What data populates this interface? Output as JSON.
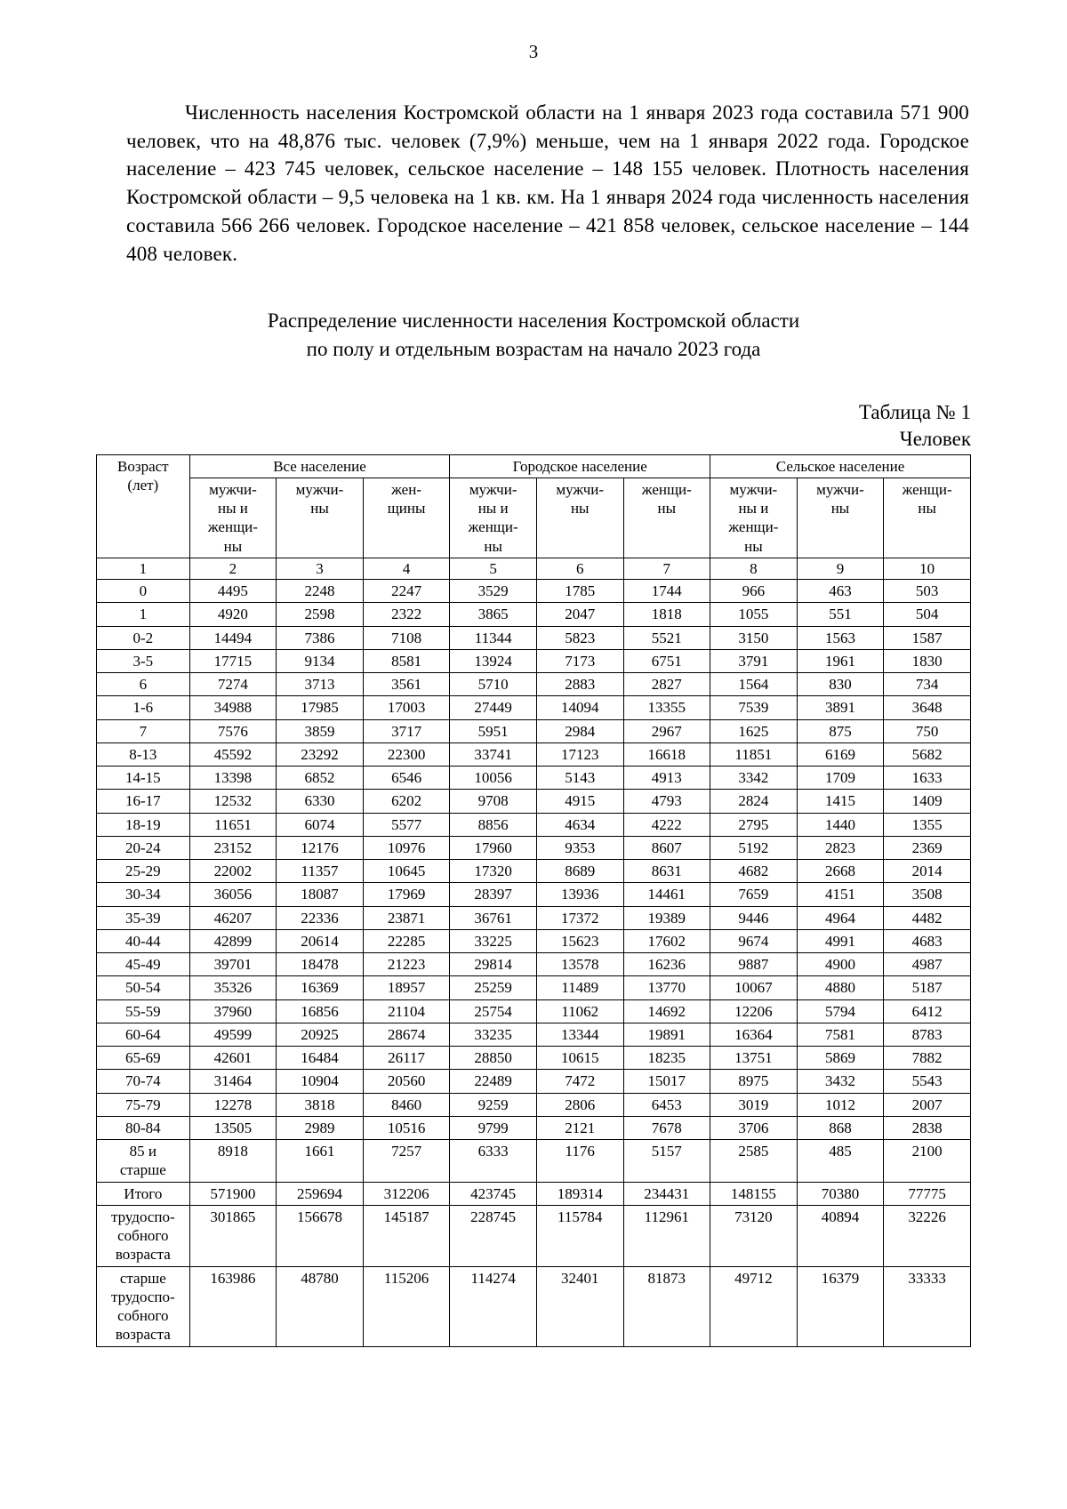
{
  "page_number": "3",
  "paragraph": "Численность населения Костромской области на 1 января 2023 года составила 571 900 человек, что на 48,876 тыс. человек (7,9%) меньше, чем на 1 января 2022 года. Городское население – 423 745 человек, сельское население – 148 155 человек. Плотность населения Костромской области – 9,5 человека на 1 кв. км. На 1 января 2024 года численность населения составила 566 266 человек. Городское население – 421 858 человек, сельское население – 144 408 человек.",
  "heading": {
    "line1": "Распределение численности населения Костромской области",
    "line2": "по полу и отдельным возрастам на начало 2023 года"
  },
  "table_label": "Таблица № 1",
  "table_units": "Человек",
  "table": {
    "age_header": "Возраст\n(лет)",
    "col_groups": [
      "Все население",
      "Городское население",
      "Сельское население"
    ],
    "sub_headers": [
      "мужчи-\nны и\nженщи-\nны",
      "мужчи-\nны",
      "жен-\nщины",
      "мужчи-\nны и\nженщи-\nны",
      "мужчи-\nны",
      "женщи-\nны",
      "мужчи-\nны и\nженщи-\nны",
      "мужчи-\nны",
      "женщи-\nны"
    ],
    "col_numbers": [
      "1",
      "2",
      "3",
      "4",
      "5",
      "6",
      "7",
      "8",
      "9",
      "10"
    ],
    "rows": [
      [
        "0",
        "4495",
        "2248",
        "2247",
        "3529",
        "1785",
        "1744",
        "966",
        "463",
        "503"
      ],
      [
        "1",
        "4920",
        "2598",
        "2322",
        "3865",
        "2047",
        "1818",
        "1055",
        "551",
        "504"
      ],
      [
        "0-2",
        "14494",
        "7386",
        "7108",
        "11344",
        "5823",
        "5521",
        "3150",
        "1563",
        "1587"
      ],
      [
        "3-5",
        "17715",
        "9134",
        "8581",
        "13924",
        "7173",
        "6751",
        "3791",
        "1961",
        "1830"
      ],
      [
        "6",
        "7274",
        "3713",
        "3561",
        "5710",
        "2883",
        "2827",
        "1564",
        "830",
        "734"
      ],
      [
        "1-6",
        "34988",
        "17985",
        "17003",
        "27449",
        "14094",
        "13355",
        "7539",
        "3891",
        "3648"
      ],
      [
        "7",
        "7576",
        "3859",
        "3717",
        "5951",
        "2984",
        "2967",
        "1625",
        "875",
        "750"
      ],
      [
        "8-13",
        "45592",
        "23292",
        "22300",
        "33741",
        "17123",
        "16618",
        "11851",
        "6169",
        "5682"
      ],
      [
        "14-15",
        "13398",
        "6852",
        "6546",
        "10056",
        "5143",
        "4913",
        "3342",
        "1709",
        "1633"
      ],
      [
        "16-17",
        "12532",
        "6330",
        "6202",
        "9708",
        "4915",
        "4793",
        "2824",
        "1415",
        "1409"
      ],
      [
        "18-19",
        "11651",
        "6074",
        "5577",
        "8856",
        "4634",
        "4222",
        "2795",
        "1440",
        "1355"
      ],
      [
        "20-24",
        "23152",
        "12176",
        "10976",
        "17960",
        "9353",
        "8607",
        "5192",
        "2823",
        "2369"
      ],
      [
        "25-29",
        "22002",
        "11357",
        "10645",
        "17320",
        "8689",
        "8631",
        "4682",
        "2668",
        "2014"
      ],
      [
        "30-34",
        "36056",
        "18087",
        "17969",
        "28397",
        "13936",
        "14461",
        "7659",
        "4151",
        "3508"
      ],
      [
        "35-39",
        "46207",
        "22336",
        "23871",
        "36761",
        "17372",
        "19389",
        "9446",
        "4964",
        "4482"
      ],
      [
        "40-44",
        "42899",
        "20614",
        "22285",
        "33225",
        "15623",
        "17602",
        "9674",
        "4991",
        "4683"
      ],
      [
        "45-49",
        "39701",
        "18478",
        "21223",
        "29814",
        "13578",
        "16236",
        "9887",
        "4900",
        "4987"
      ],
      [
        "50-54",
        "35326",
        "16369",
        "18957",
        "25259",
        "11489",
        "13770",
        "10067",
        "4880",
        "5187"
      ],
      [
        "55-59",
        "37960",
        "16856",
        "21104",
        "25754",
        "11062",
        "14692",
        "12206",
        "5794",
        "6412"
      ],
      [
        "60-64",
        "49599",
        "20925",
        "28674",
        "33235",
        "13344",
        "19891",
        "16364",
        "7581",
        "8783"
      ],
      [
        "65-69",
        "42601",
        "16484",
        "26117",
        "28850",
        "10615",
        "18235",
        "13751",
        "5869",
        "7882"
      ],
      [
        "70-74",
        "31464",
        "10904",
        "20560",
        "22489",
        "7472",
        "15017",
        "8975",
        "3432",
        "5543"
      ],
      [
        "75-79",
        "12278",
        "3818",
        "8460",
        "9259",
        "2806",
        "6453",
        "3019",
        "1012",
        "2007"
      ],
      [
        "80-84",
        "13505",
        "2989",
        "10516",
        "9799",
        "2121",
        "7678",
        "3706",
        "868",
        "2838"
      ],
      [
        "85 и\nстарше",
        "8918",
        "1661",
        "7257",
        "6333",
        "1176",
        "5157",
        "2585",
        "485",
        "2100"
      ],
      [
        "Итого",
        "571900",
        "259694",
        "312206",
        "423745",
        "189314",
        "234431",
        "148155",
        "70380",
        "77775"
      ],
      [
        "трудоспо-\nсобного\nвозраста",
        "301865",
        "156678",
        "145187",
        "228745",
        "115784",
        "112961",
        "73120",
        "40894",
        "32226"
      ],
      [
        "старше\nтрудоспо-\nсобного\nвозраста",
        "163986",
        "48780",
        "115206",
        "114274",
        "32401",
        "81873",
        "49712",
        "16379",
        "33333"
      ]
    ]
  }
}
